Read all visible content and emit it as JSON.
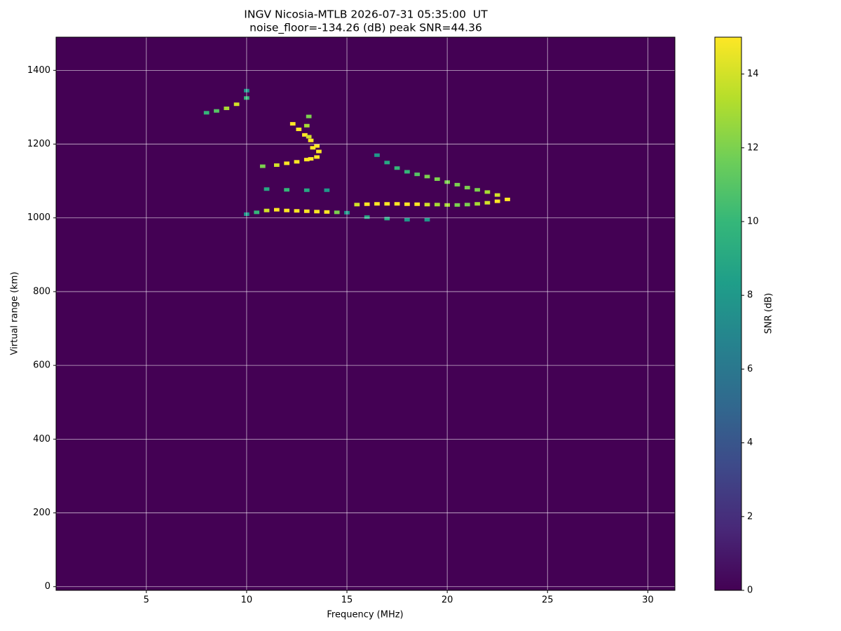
{
  "chart_data": {
    "type": "ionogram",
    "title": "INGV Nicosia-MTLB 2026-07-31 05:35:00  UT",
    "subtitle": "noise_floor=-134.26 (dB) peak SNR=44.36",
    "x_label": "Frequency (MHz)",
    "y_label": "Virtual range (km)",
    "xlim": [
      0.5,
      31.35
    ],
    "ylim": [
      -10,
      1490
    ],
    "xticks": [
      5,
      10,
      15,
      20,
      25,
      30
    ],
    "yticks": [
      0,
      200,
      400,
      600,
      800,
      1000,
      1200,
      1400
    ],
    "grid": true,
    "background": "#440154",
    "colorbar": {
      "label": "SNR (dB)",
      "lim": [
        0,
        15
      ],
      "ticks": [
        0,
        2,
        4,
        6,
        8,
        10,
        12,
        14
      ],
      "colors": [
        "#440154",
        "#482878",
        "#3e4989",
        "#31688e",
        "#26828e",
        "#1f9e89",
        "#35b779",
        "#6ece58",
        "#b5de2b",
        "#fde725"
      ]
    },
    "traces": [
      {
        "x": [
          10,
          10.5,
          11,
          11.5,
          12,
          12.5,
          13,
          13.5,
          14,
          14.5,
          15
        ],
        "y": [
          1010,
          1015,
          1020,
          1022,
          1020,
          1019,
          1018,
          1017,
          1016,
          1015,
          1014
        ],
        "snr": [
          8,
          10,
          14,
          15,
          15,
          15,
          15,
          15,
          15,
          12,
          8
        ]
      },
      {
        "x": [
          15.5,
          16,
          16.5,
          17,
          17.5,
          18,
          18.5,
          19,
          19.5,
          20,
          20.5,
          21,
          21.5,
          22,
          22.5,
          23
        ],
        "y": [
          1036,
          1037,
          1038,
          1038,
          1038,
          1037,
          1037,
          1036,
          1036,
          1035,
          1035,
          1036,
          1038,
          1041,
          1045,
          1050
        ],
        "snr": [
          14,
          15,
          15,
          15,
          15,
          15,
          15,
          14,
          13,
          13,
          12,
          12,
          13,
          14,
          15,
          15
        ]
      },
      {
        "x": [
          22.5,
          22,
          21.5,
          21,
          20.5,
          20,
          19.5,
          19,
          18.5,
          18,
          17.5,
          17,
          16.5
        ],
        "y": [
          1062,
          1070,
          1076,
          1082,
          1090,
          1097,
          1105,
          1112,
          1118,
          1125,
          1135,
          1150,
          1170
        ],
        "snr": [
          14,
          13,
          12,
          12,
          12,
          12,
          12,
          12,
          11,
          10,
          10,
          9,
          8
        ]
      },
      {
        "x": [
          16,
          17,
          18,
          19
        ],
        "y": [
          1002,
          998,
          995,
          995
        ],
        "snr": [
          9,
          9,
          8,
          8
        ]
      },
      {
        "x": [
          10.8,
          11.5,
          12,
          12.5,
          13,
          13.5,
          13.6,
          13.5,
          13.2,
          12.9,
          12.6,
          12.3
        ],
        "y": [
          1140,
          1143,
          1148,
          1152,
          1158,
          1165,
          1180,
          1195,
          1210,
          1225,
          1240,
          1255
        ],
        "snr": [
          12,
          14,
          15,
          15,
          15,
          15,
          15,
          15,
          15,
          15,
          15,
          15
        ]
      },
      {
        "x": [
          13.2,
          13.3,
          13.1,
          13.0,
          13.1
        ],
        "y": [
          1160,
          1190,
          1220,
          1250,
          1275
        ],
        "snr": [
          15,
          15,
          14,
          13,
          12
        ]
      },
      {
        "x": [
          8,
          8.5,
          9,
          9.5,
          10,
          10
        ],
        "y": [
          1285,
          1290,
          1297,
          1308,
          1325,
          1345
        ],
        "snr": [
          10,
          11,
          13,
          14,
          10,
          8
        ]
      },
      {
        "x": [
          11,
          12,
          13,
          14
        ],
        "y": [
          1078,
          1076,
          1075,
          1075
        ],
        "snr": [
          9,
          10,
          9,
          8
        ]
      }
    ]
  }
}
